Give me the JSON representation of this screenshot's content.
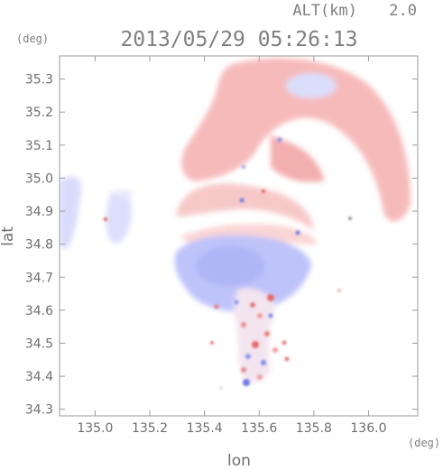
{
  "chart_data": {
    "type": "heatmap",
    "title": "2013/05/29 05:26:13",
    "altitude_label": "ALT(km)",
    "altitude_value": "2.0",
    "xlabel": "lon",
    "ylabel": "lat",
    "x_unit": "(deg)",
    "y_unit": "(deg)",
    "xlim": [
      134.87,
      136.18
    ],
    "ylim": [
      34.28,
      35.37
    ],
    "x_ticks": [
      "135.0",
      "135.2",
      "135.4",
      "135.6",
      "135.8",
      "136.0"
    ],
    "y_ticks": [
      "34.3",
      "34.4",
      "34.5",
      "34.6",
      "34.7",
      "34.8",
      "34.9",
      "35.0",
      "35.1",
      "35.2",
      "35.3"
    ],
    "grid": false,
    "colors": {
      "receding": "#f4a6a6",
      "approaching": "#aab0f6",
      "strong_receding": "#e05a5a",
      "strong_approaching": "#6f78e6",
      "frame": "#9a9a9a"
    }
  }
}
